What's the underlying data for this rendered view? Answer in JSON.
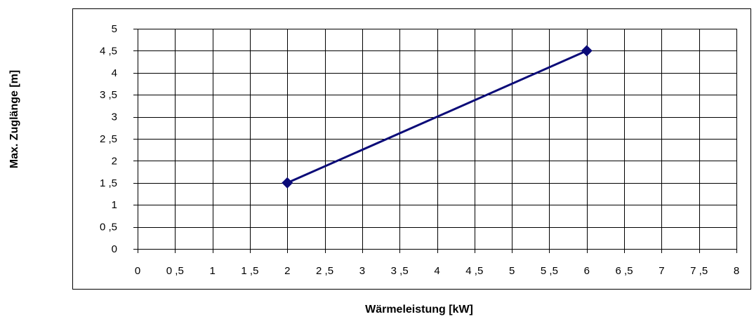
{
  "chart_data": {
    "type": "line",
    "title": "",
    "xlabel": "Wärmeleistung [kW]",
    "ylabel": "Max. Zuglänge [m]",
    "xlim": [
      0,
      8
    ],
    "ylim": [
      0,
      5
    ],
    "x_ticks": [
      "0",
      "0 ,5",
      "1",
      "1 ,5",
      "2",
      "2 ,5",
      "3",
      "3 ,5",
      "4",
      "4 ,5",
      "5",
      "5 ,5",
      "6",
      "6 ,5",
      "7",
      "7 ,5",
      "8"
    ],
    "y_ticks": [
      "0",
      "0 ,5",
      "1",
      "1 ,5",
      "2",
      "2 ,5",
      "3",
      "3 ,5",
      "4",
      "4 ,5",
      "5"
    ],
    "grid": true,
    "legend": "none",
    "series": [
      {
        "x": [
          2,
          6
        ],
        "values": [
          1.5,
          4.5
        ],
        "color": "#0b0b78",
        "marker": "diamond"
      }
    ]
  }
}
